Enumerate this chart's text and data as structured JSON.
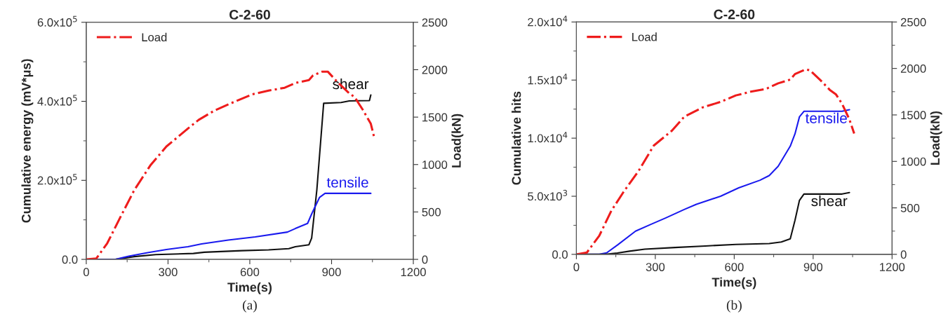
{
  "chart_data": [
    {
      "type": "line",
      "title": "C-2-60",
      "xlabel": "Time(s)",
      "ylabel": "Cumulative energy (mV*μs)",
      "y2label": "Load(kN)",
      "xlim": [
        0,
        1200
      ],
      "xticks": [
        0,
        300,
        600,
        900,
        1200
      ],
      "ylim": [
        0,
        600000
      ],
      "yticks": [
        {
          "value": 0,
          "label": "0.0"
        },
        {
          "value": 200000,
          "label": "2.0x10$^{5}$"
        },
        {
          "value": 400000,
          "label": "4.0x10$^{5}$"
        },
        {
          "value": 600000,
          "label": "6.0x10$^{5}$"
        }
      ],
      "y2lim": [
        0,
        2500
      ],
      "y2ticks": [
        0,
        500,
        1000,
        1500,
        2000,
        2500
      ],
      "legend": "top left",
      "grid": false,
      "marker": "none",
      "annotations": [
        "(a)"
      ],
      "series": [
        {
          "name": "Load",
          "axis": "y2",
          "color": "#ee1c1c",
          "line_style": "dashdot",
          "x": [
            0,
            37,
            77,
            126,
            176,
            235,
            294,
            373,
            412,
            471,
            550,
            609,
            669,
            728,
            767,
            817,
            832,
            866,
            886,
            925,
            965,
            985,
            1014,
            1044,
            1056
          ],
          "values": [
            0,
            10,
            170,
            450,
            730,
            990,
            1190,
            1380,
            1470,
            1570,
            1670,
            1740,
            1780,
            1810,
            1860,
            1890,
            1940,
            1980,
            1980,
            1860,
            1750,
            1710,
            1580,
            1430,
            1290
          ]
        },
        {
          "name": "shear",
          "color": "#111111",
          "line_style": "solid",
          "x": [
            0,
            107,
            176,
            255,
            393,
            433,
            571,
            669,
            743,
            767,
            817,
            827,
            846,
            871,
            935,
            965,
            1039,
            1044
          ],
          "values": [
            0,
            0,
            7000,
            12000,
            15000,
            18000,
            22000,
            24000,
            27000,
            32000,
            37000,
            54000,
            176000,
            395000,
            397000,
            401000,
            402000,
            416000
          ]
        },
        {
          "name": "tensile",
          "color": "#1a1aee",
          "line_style": "solid",
          "x": [
            0,
            107,
            156,
            225,
            294,
            373,
            423,
            521,
            620,
            738,
            767,
            812,
            827,
            856,
            876,
            1044
          ],
          "values": [
            0,
            0,
            8000,
            17000,
            25000,
            32000,
            39000,
            49000,
            57000,
            69000,
            78000,
            91000,
            115000,
            157000,
            167000,
            167000
          ]
        }
      ]
    },
    {
      "type": "line",
      "title": "C-2-60",
      "xlabel": "Time(s)",
      "ylabel": "Cumulative hits",
      "y2label": "Load(kN)",
      "xlim": [
        0,
        1200
      ],
      "xticks": [
        0,
        300,
        600,
        900,
        1200
      ],
      "ylim": [
        0,
        20000
      ],
      "yticks": [
        {
          "value": 0,
          "label": "0.0"
        },
        {
          "value": 5000,
          "label": "5.0x10$^{3}$"
        },
        {
          "value": 10000,
          "label": "1.0x10$^{4}$"
        },
        {
          "value": 15000,
          "label": "1.5x10$^{4}$"
        },
        {
          "value": 20000,
          "label": "2.0x10$^{4}$"
        }
      ],
      "y2lim": [
        0,
        2500
      ],
      "y2ticks": [
        0,
        500,
        1000,
        1500,
        2000,
        2500
      ],
      "legend": "top left",
      "grid": false,
      "marker": "none",
      "annotations": [
        "(b)"
      ],
      "series": [
        {
          "name": "Load",
          "axis": "y2",
          "color": "#ee1c1c",
          "line_style": "dashdot",
          "x": [
            0,
            40,
            87,
            133,
            179,
            237,
            294,
            363,
            410,
            479,
            548,
            606,
            663,
            721,
            767,
            813,
            831,
            871,
            888,
            929,
            963,
            987,
            1010,
            1038,
            1056
          ],
          "values": [
            0,
            20,
            200,
            470,
            670,
            900,
            1170,
            1330,
            1480,
            1580,
            1640,
            1710,
            1750,
            1780,
            1840,
            1880,
            1940,
            1990,
            1980,
            1870,
            1770,
            1720,
            1620,
            1450,
            1300
          ]
        },
        {
          "name": "tensile",
          "color": "#1a1aee",
          "line_style": "solid",
          "x": [
            0,
            87,
            115,
            156,
            225,
            283,
            340,
            410,
            456,
            548,
            617,
            698,
            733,
            767,
            813,
            831,
            848,
            865,
            1010,
            1038
          ],
          "values": [
            0,
            0,
            130,
            800,
            2000,
            2580,
            3140,
            3860,
            4310,
            5000,
            5720,
            6380,
            6780,
            7580,
            9310,
            10370,
            11840,
            12310,
            12310,
            12450
          ]
        },
        {
          "name": "shear",
          "color": "#111111",
          "line_style": "solid",
          "x": [
            0,
            110,
            156,
            202,
            260,
            375,
            490,
            606,
            733,
            779,
            813,
            831,
            848,
            865,
            1010,
            1038
          ],
          "values": [
            0,
            0,
            110,
            270,
            450,
            590,
            720,
            850,
            930,
            1060,
            1330,
            2930,
            4650,
            5190,
            5190,
            5320
          ]
        }
      ]
    }
  ]
}
